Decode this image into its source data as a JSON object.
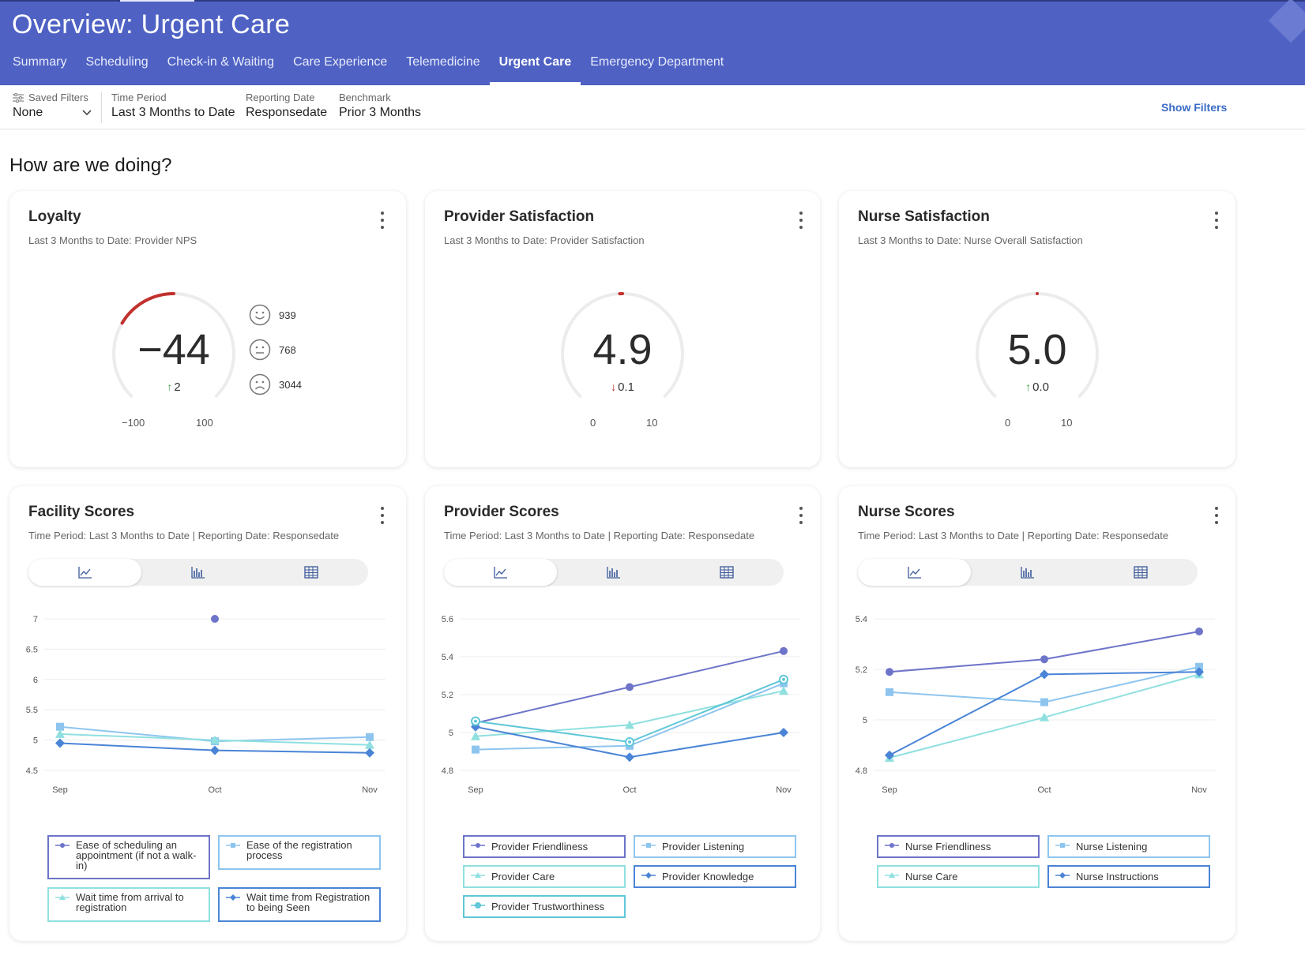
{
  "header": {
    "title": "Overview: Urgent Care",
    "tabs": [
      {
        "label": "Summary"
      },
      {
        "label": "Scheduling"
      },
      {
        "label": "Check-in & Waiting"
      },
      {
        "label": "Care Experience"
      },
      {
        "label": "Telemedicine"
      },
      {
        "label": "Urgent Care"
      },
      {
        "label": "Emergency Department"
      }
    ],
    "active_tab": "Urgent Care"
  },
  "filters": {
    "saved_filters": {
      "label": "Saved Filters",
      "value": "None"
    },
    "time_period": {
      "label": "Time Period",
      "value": "Last 3 Months to Date"
    },
    "reporting_date": {
      "label": "Reporting Date",
      "value": "Responsedate"
    },
    "benchmark": {
      "label": "Benchmark",
      "value": "Prior 3 Months"
    },
    "show_filters": "Show Filters"
  },
  "section_title": "How are we doing?",
  "colors": {
    "header_bg": "#4f62c4",
    "gauge_red": "#c1312e",
    "gauge_track": "#ececec",
    "series": [
      "#6d74c9",
      "#8ec5ef",
      "#8fe0df",
      "#4a84d6",
      "#5fc7d8"
    ]
  },
  "gauges": [
    {
      "title": "Loyalty",
      "subtitle": "Last 3 Months to Date: Provider NPS",
      "value": "−44",
      "delta": "2",
      "delta_direction": "up",
      "min": "−100",
      "max": "100",
      "min_num": -100,
      "max_num": 100,
      "value_num": -44,
      "nps": [
        {
          "icon": "happy-face-icon",
          "count": "939"
        },
        {
          "icon": "neutral-face-icon",
          "count": "768"
        },
        {
          "icon": "sad-face-icon",
          "count": "3044"
        }
      ]
    },
    {
      "title": "Provider Satisfaction",
      "subtitle": "Last 3 Months to Date: Provider Satisfaction",
      "value": "4.9",
      "delta": "0.1",
      "delta_direction": "down",
      "min": "0",
      "max": "10",
      "min_num": 0,
      "max_num": 10,
      "value_num": 4.9
    },
    {
      "title": "Nurse Satisfaction",
      "subtitle": "Last 3 Months to Date: Nurse Overall Satisfaction",
      "value": "5.0",
      "delta": "0.0",
      "delta_direction": "up",
      "min": "0",
      "max": "10",
      "min_num": 0,
      "max_num": 10,
      "value_num": 5.0
    }
  ],
  "score_cards": [
    {
      "title": "Facility Scores",
      "subtitle": "Time Period: Last 3 Months to Date | Reporting Date: Responsedate"
    },
    {
      "title": "Provider Scores",
      "subtitle": "Time Period: Last 3 Months to Date | Reporting Date: Responsedate"
    },
    {
      "title": "Nurse Scores",
      "subtitle": "Time Period: Last 3 Months to Date | Reporting Date: Responsedate"
    }
  ],
  "view_toggle_icons": [
    "line-chart-icon",
    "bar-chart-icon",
    "table-icon"
  ],
  "chart_data": [
    {
      "type": "line",
      "x": [
        "Sep",
        "Oct",
        "Nov"
      ],
      "ylim": [
        4.5,
        7
      ],
      "yticks": [
        "4.5",
        "5",
        "5.5",
        "6",
        "6.5",
        "7"
      ],
      "ytick_values": [
        4.5,
        5,
        5.5,
        6,
        6.5,
        7
      ],
      "grid": true,
      "series": [
        {
          "name": "Ease of scheduling an appointment (if not a walk-in)",
          "marker": "circle",
          "values": [
            null,
            7.0,
            null
          ]
        },
        {
          "name": "Ease of the registration process",
          "marker": "square",
          "values": [
            5.22,
            4.98,
            5.05
          ]
        },
        {
          "name": "Wait time from arrival to registration",
          "marker": "triangle",
          "values": [
            5.1,
            5.0,
            4.92
          ]
        },
        {
          "name": "Wait time from Registration to being Seen",
          "marker": "diamond",
          "values": [
            4.95,
            4.83,
            4.79
          ]
        }
      ]
    },
    {
      "type": "line",
      "x": [
        "Sep",
        "Oct",
        "Nov"
      ],
      "ylim": [
        4.8,
        5.6
      ],
      "yticks": [
        "4.8",
        "5",
        "5.2",
        "5.4",
        "5.6"
      ],
      "ytick_values": [
        4.8,
        5.0,
        5.2,
        5.4,
        5.6
      ],
      "grid": true,
      "series": [
        {
          "name": "Provider Friendliness",
          "marker": "circle",
          "values": [
            5.05,
            5.24,
            5.43
          ]
        },
        {
          "name": "Provider Listening",
          "marker": "square",
          "values": [
            4.91,
            4.93,
            5.26
          ]
        },
        {
          "name": "Provider Care",
          "marker": "triangle",
          "values": [
            4.98,
            5.04,
            5.22
          ]
        },
        {
          "name": "Provider Knowledge",
          "marker": "diamond",
          "values": [
            5.03,
            4.87,
            5.0
          ]
        },
        {
          "name": "Provider Trustworthiness",
          "marker": "ring",
          "values": [
            5.06,
            4.95,
            5.28
          ]
        }
      ]
    },
    {
      "type": "line",
      "x": [
        "Sep",
        "Oct",
        "Nov"
      ],
      "ylim": [
        4.8,
        5.4
      ],
      "yticks": [
        "4.8",
        "5",
        "5.2",
        "5.4"
      ],
      "ytick_values": [
        4.8,
        5.0,
        5.2,
        5.4
      ],
      "grid": true,
      "series": [
        {
          "name": "Nurse Friendliness",
          "marker": "circle",
          "values": [
            5.19,
            5.24,
            5.35
          ]
        },
        {
          "name": "Nurse Listening",
          "marker": "square",
          "values": [
            5.11,
            5.07,
            5.21
          ]
        },
        {
          "name": "Nurse Care",
          "marker": "triangle",
          "values": [
            4.85,
            5.01,
            5.18
          ]
        },
        {
          "name": "Nurse Instructions",
          "marker": "diamond",
          "values": [
            4.86,
            5.18,
            5.19
          ]
        }
      ]
    }
  ]
}
